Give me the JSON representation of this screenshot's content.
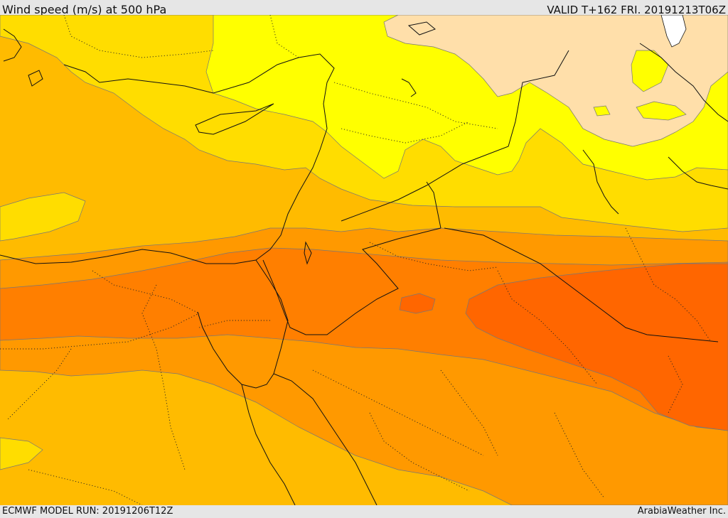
{
  "header": {
    "title": "Wind speed (m/s) at 500 hPa",
    "valid": "VALID T+162 FRI. 20191213T06Z"
  },
  "footer": {
    "model_run": "ECMWF MODEL RUN: 20191206T12Z",
    "credit": "ArabiaWeather Inc."
  },
  "colors": {
    "band_pale": "#ffdfaa",
    "band_yellow": "#ffff00",
    "band_gold": "#ffdd00",
    "band_amber": "#ffbb00",
    "band_orange": "#ff9900",
    "band_dark_orange": "#ff7f00",
    "band_red_orange": "#ff6600",
    "water": "#ffffff"
  }
}
